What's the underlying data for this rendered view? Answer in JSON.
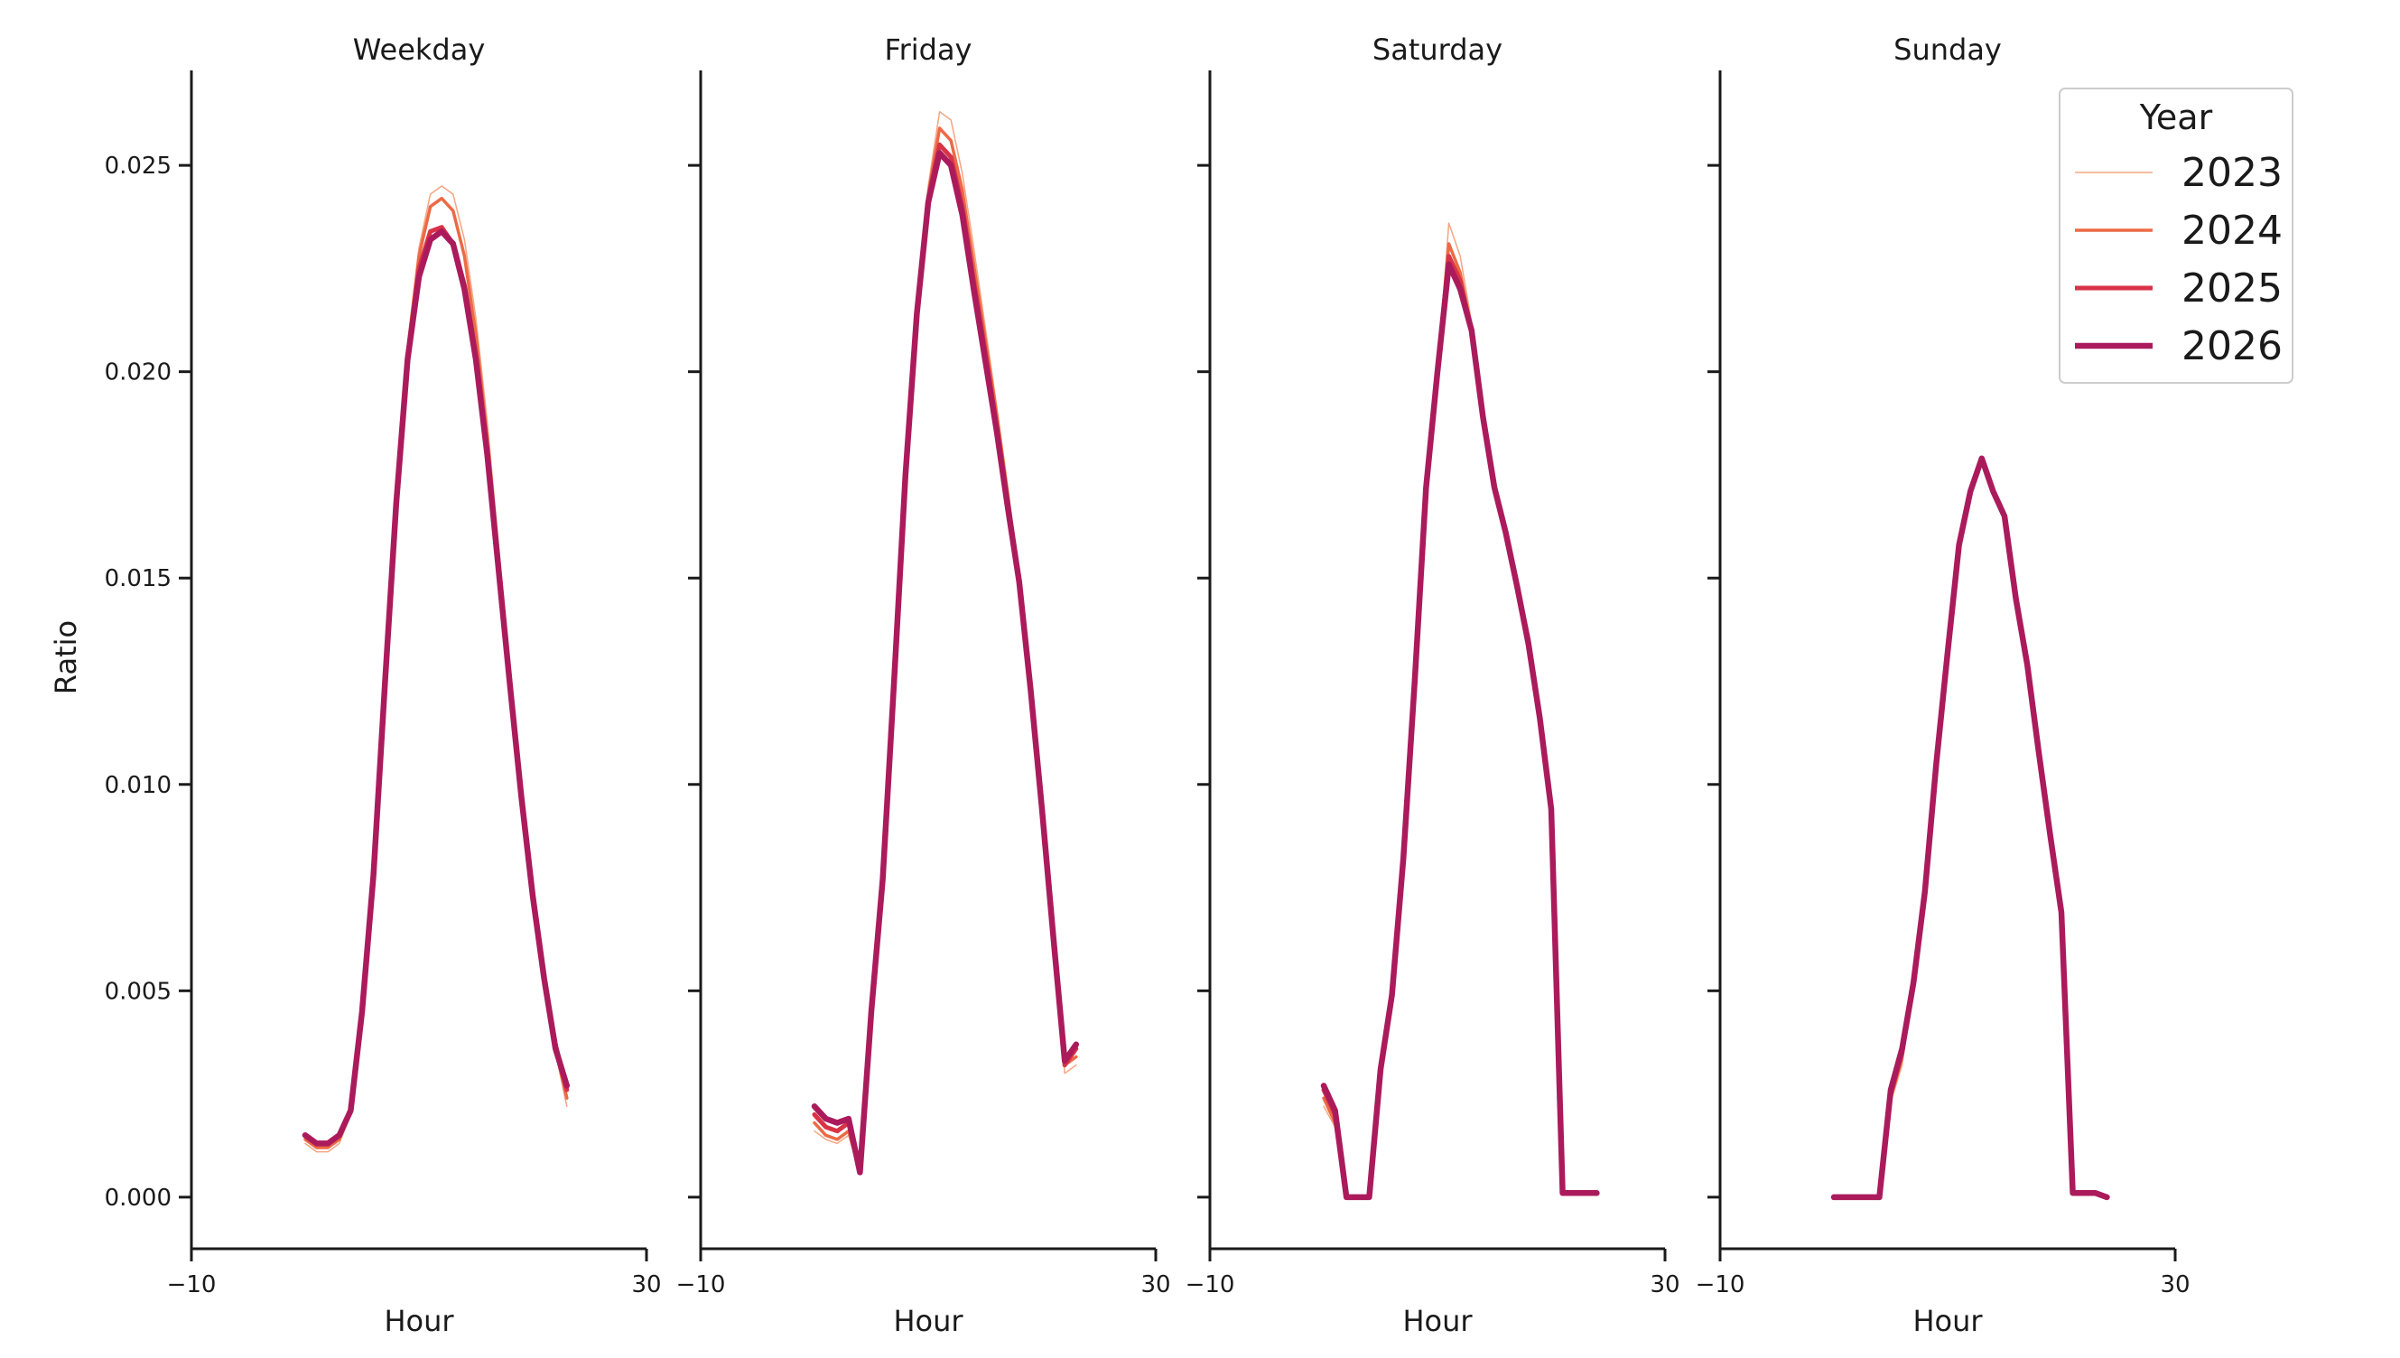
{
  "chart_data": {
    "type": "line",
    "ylabel": "Ratio",
    "xlabel": "Hour",
    "xlim": [
      -10,
      30
    ],
    "ylim": [
      -0.00125,
      0.0273
    ],
    "xticks": [
      -10,
      30
    ],
    "yticks": [
      0.0,
      0.005,
      0.01,
      0.015,
      0.02,
      0.025
    ],
    "ytick_labels": [
      "0.000",
      "0.005",
      "0.010",
      "0.015",
      "0.020",
      "0.025"
    ],
    "xtick_labels": [
      "−10",
      "30"
    ],
    "grid": false,
    "legend": {
      "title": "Year",
      "placement": "top-right",
      "entries": [
        "2023",
        "2024",
        "2025",
        "2026"
      ]
    },
    "series_style": {
      "2023": {
        "color": "#f4a582",
        "width": 1.5
      },
      "2024": {
        "color": "#ec6a45",
        "width": 3.5
      },
      "2025": {
        "color": "#d83347",
        "width": 5
      },
      "2026": {
        "color": "#ab1b5c",
        "width": 6.5
      }
    },
    "panels": [
      {
        "title": "Weekday",
        "series": [
          {
            "name": "2023",
            "x": [
              0,
              1,
              2,
              3,
              4,
              5,
              6,
              7,
              8,
              9,
              10,
              11,
              12,
              13,
              14,
              15,
              16,
              17,
              18,
              19,
              20,
              21,
              22,
              23
            ],
            "y": [
              0.0013,
              0.0011,
              0.0011,
              0.0013,
              0.002,
              0.0044,
              0.0078,
              0.0125,
              0.017,
              0.0207,
              0.023,
              0.0243,
              0.0245,
              0.0243,
              0.0232,
              0.0213,
              0.0188,
              0.0158,
              0.0128,
              0.0098,
              0.0073,
              0.0052,
              0.0035,
              0.0022
            ]
          },
          {
            "name": "2024",
            "x": [
              0,
              1,
              2,
              3,
              4,
              5,
              6,
              7,
              8,
              9,
              10,
              11,
              12,
              13,
              14,
              15,
              16,
              17,
              18,
              19,
              20,
              21,
              22,
              23
            ],
            "y": [
              0.0014,
              0.0012,
              0.0012,
              0.0014,
              0.0021,
              0.0044,
              0.0078,
              0.0124,
              0.0169,
              0.0205,
              0.0228,
              0.024,
              0.0242,
              0.0239,
              0.0228,
              0.0209,
              0.0184,
              0.0155,
              0.0126,
              0.0097,
              0.0073,
              0.0052,
              0.0036,
              0.0024
            ]
          },
          {
            "name": "2025",
            "x": [
              0,
              1,
              2,
              3,
              4,
              5,
              6,
              7,
              8,
              9,
              10,
              11,
              12,
              13,
              14,
              15,
              16,
              17,
              18,
              19,
              20,
              21,
              22,
              23
            ],
            "y": [
              0.0015,
              0.0013,
              0.0013,
              0.0015,
              0.0021,
              0.0045,
              0.0078,
              0.0124,
              0.0168,
              0.0203,
              0.0225,
              0.0234,
              0.0235,
              0.0231,
              0.0221,
              0.0204,
              0.0181,
              0.0153,
              0.0125,
              0.0097,
              0.0073,
              0.0053,
              0.0037,
              0.0026
            ]
          },
          {
            "name": "2026",
            "x": [
              0,
              1,
              2,
              3,
              4,
              5,
              6,
              7,
              8,
              9,
              10,
              11,
              12,
              13,
              14,
              15,
              16,
              17,
              18,
              19,
              20,
              21,
              22,
              23
            ],
            "y": [
              0.0015,
              0.0013,
              0.0013,
              0.0015,
              0.0021,
              0.0045,
              0.0078,
              0.0124,
              0.0168,
              0.0203,
              0.0223,
              0.0232,
              0.0234,
              0.0231,
              0.022,
              0.0203,
              0.018,
              0.0152,
              0.0124,
              0.0097,
              0.0073,
              0.0053,
              0.0036,
              0.0027
            ]
          }
        ]
      },
      {
        "title": "Friday",
        "series": [
          {
            "name": "2023",
            "x": [
              0,
              1,
              2,
              3,
              4,
              5,
              6,
              7,
              8,
              9,
              10,
              11,
              12,
              13,
              14,
              15,
              16,
              17,
              18,
              19,
              20,
              21,
              22,
              23
            ],
            "y": [
              0.0016,
              0.0014,
              0.0013,
              0.0015,
              0.0006,
              0.0045,
              0.0077,
              0.0125,
              0.0175,
              0.0215,
              0.0245,
              0.0263,
              0.0261,
              0.0248,
              0.023,
              0.0211,
              0.0192,
              0.0172,
              0.015,
              0.0123,
              0.0092,
              0.006,
              0.003,
              0.0032
            ]
          },
          {
            "name": "2024",
            "x": [
              0,
              1,
              2,
              3,
              4,
              5,
              6,
              7,
              8,
              9,
              10,
              11,
              12,
              13,
              14,
              15,
              16,
              17,
              18,
              19,
              20,
              21,
              22,
              23
            ],
            "y": [
              0.0018,
              0.0015,
              0.0014,
              0.0016,
              0.0006,
              0.0045,
              0.0077,
              0.0125,
              0.0175,
              0.0214,
              0.0243,
              0.0259,
              0.0256,
              0.0244,
              0.0226,
              0.0208,
              0.019,
              0.017,
              0.015,
              0.0123,
              0.0093,
              0.0062,
              0.0032,
              0.0034
            ]
          },
          {
            "name": "2025",
            "x": [
              0,
              1,
              2,
              3,
              4,
              5,
              6,
              7,
              8,
              9,
              10,
              11,
              12,
              13,
              14,
              15,
              16,
              17,
              18,
              19,
              20,
              21,
              22,
              23
            ],
            "y": [
              0.002,
              0.0017,
              0.0016,
              0.0018,
              0.0006,
              0.0045,
              0.0077,
              0.0125,
              0.0175,
              0.0214,
              0.0242,
              0.0255,
              0.0252,
              0.024,
              0.0222,
              0.0205,
              0.0187,
              0.0168,
              0.0149,
              0.0123,
              0.0093,
              0.0063,
              0.0032,
              0.0036
            ]
          },
          {
            "name": "2026",
            "x": [
              0,
              1,
              2,
              3,
              4,
              5,
              6,
              7,
              8,
              9,
              10,
              11,
              12,
              13,
              14,
              15,
              16,
              17,
              18,
              19,
              20,
              21,
              22,
              23
            ],
            "y": [
              0.0022,
              0.0019,
              0.0018,
              0.0019,
              0.0006,
              0.0045,
              0.0077,
              0.0125,
              0.0175,
              0.0214,
              0.0241,
              0.0253,
              0.025,
              0.0238,
              0.022,
              0.0203,
              0.0186,
              0.0167,
              0.0149,
              0.0123,
              0.0094,
              0.0063,
              0.0033,
              0.0037
            ]
          }
        ]
      },
      {
        "title": "Saturday",
        "series": [
          {
            "name": "2023",
            "x": [
              0,
              1,
              2,
              3,
              4,
              5,
              6,
              7,
              8,
              9,
              10,
              11,
              12,
              13,
              14,
              15,
              16,
              17,
              18,
              19,
              20,
              21,
              22,
              23,
              24
            ],
            "y": [
              0.0022,
              0.0017,
              0.0,
              0.0,
              0.0,
              0.0031,
              0.0049,
              0.0082,
              0.0125,
              0.0172,
              0.02,
              0.0236,
              0.0228,
              0.0212,
              0.019,
              0.0172,
              0.0161,
              0.0149,
              0.0136,
              0.0116,
              0.0094,
              0.0001,
              0.0001,
              0.0001,
              0.0001
            ]
          },
          {
            "name": "2024",
            "x": [
              0,
              1,
              2,
              3,
              4,
              5,
              6,
              7,
              8,
              9,
              10,
              11,
              12,
              13,
              14,
              15,
              16,
              17,
              18,
              19,
              20,
              21,
              22,
              23,
              24
            ],
            "y": [
              0.0024,
              0.0018,
              0.0,
              0.0,
              0.0,
              0.0031,
              0.0049,
              0.0082,
              0.0125,
              0.0172,
              0.02,
              0.0231,
              0.0224,
              0.021,
              0.0189,
              0.0172,
              0.0161,
              0.0148,
              0.0135,
              0.0116,
              0.0094,
              0.0001,
              0.0001,
              0.0001,
              0.0001
            ]
          },
          {
            "name": "2025",
            "x": [
              0,
              1,
              2,
              3,
              4,
              5,
              6,
              7,
              8,
              9,
              10,
              11,
              12,
              13,
              14,
              15,
              16,
              17,
              18,
              19,
              20,
              21,
              22,
              23,
              24
            ],
            "y": [
              0.0026,
              0.002,
              0.0,
              0.0,
              0.0,
              0.0031,
              0.0049,
              0.0082,
              0.0125,
              0.0172,
              0.02,
              0.0228,
              0.0222,
              0.021,
              0.0189,
              0.0172,
              0.0161,
              0.0148,
              0.0135,
              0.0116,
              0.0094,
              0.0001,
              0.0001,
              0.0001,
              0.0001
            ]
          },
          {
            "name": "2026",
            "x": [
              0,
              1,
              2,
              3,
              4,
              5,
              6,
              7,
              8,
              9,
              10,
              11,
              12,
              13,
              14,
              15,
              16,
              17,
              18,
              19,
              20,
              21,
              22,
              23,
              24
            ],
            "y": [
              0.0027,
              0.0021,
              0.0,
              0.0,
              0.0,
              0.0031,
              0.0049,
              0.0082,
              0.0125,
              0.0172,
              0.02,
              0.0226,
              0.022,
              0.021,
              0.0189,
              0.0172,
              0.0161,
              0.0148,
              0.0134,
              0.0116,
              0.0094,
              0.0001,
              0.0001,
              0.0001,
              0.0001
            ]
          }
        ]
      },
      {
        "title": "Sunday",
        "series": [
          {
            "name": "2023",
            "x": [
              0,
              1,
              2,
              3,
              4,
              5,
              6,
              7,
              8,
              9,
              10,
              11,
              12,
              13,
              14,
              15,
              16,
              17,
              18,
              19,
              20,
              21,
              22,
              23,
              24
            ],
            "y": [
              0.0,
              0.0,
              0.0,
              0.0,
              0.0,
              0.0023,
              0.0032,
              0.0052,
              0.0074,
              0.0105,
              0.0132,
              0.0158,
              0.0171,
              0.0179,
              0.0171,
              0.0165,
              0.0145,
              0.0129,
              0.0108,
              0.0088,
              0.0069,
              0.0001,
              0.0001,
              0.0001,
              0.0
            ]
          },
          {
            "name": "2024",
            "x": [
              0,
              1,
              2,
              3,
              4,
              5,
              6,
              7,
              8,
              9,
              10,
              11,
              12,
              13,
              14,
              15,
              16,
              17,
              18,
              19,
              20,
              21,
              22,
              23,
              24
            ],
            "y": [
              0.0,
              0.0,
              0.0,
              0.0,
              0.0,
              0.0024,
              0.0034,
              0.0052,
              0.0074,
              0.0105,
              0.0132,
              0.0158,
              0.0171,
              0.0179,
              0.0171,
              0.0165,
              0.0145,
              0.0129,
              0.0108,
              0.0088,
              0.0069,
              0.0001,
              0.0001,
              0.0001,
              0.0
            ]
          },
          {
            "name": "2025",
            "x": [
              0,
              1,
              2,
              3,
              4,
              5,
              6,
              7,
              8,
              9,
              10,
              11,
              12,
              13,
              14,
              15,
              16,
              17,
              18,
              19,
              20,
              21,
              22,
              23,
              24
            ],
            "y": [
              0.0,
              0.0,
              0.0,
              0.0,
              0.0,
              0.0025,
              0.0035,
              0.0052,
              0.0074,
              0.0105,
              0.0132,
              0.0158,
              0.0171,
              0.0179,
              0.0171,
              0.0165,
              0.0145,
              0.0129,
              0.0108,
              0.0088,
              0.0069,
              0.0001,
              0.0001,
              0.0001,
              0.0
            ]
          },
          {
            "name": "2026",
            "x": [
              0,
              1,
              2,
              3,
              4,
              5,
              6,
              7,
              8,
              9,
              10,
              11,
              12,
              13,
              14,
              15,
              16,
              17,
              18,
              19,
              20,
              21,
              22,
              23,
              24
            ],
            "y": [
              0.0,
              0.0,
              0.0,
              0.0,
              0.0,
              0.0026,
              0.0036,
              0.0052,
              0.0074,
              0.0105,
              0.0132,
              0.0158,
              0.0171,
              0.0179,
              0.0171,
              0.0165,
              0.0145,
              0.0129,
              0.0108,
              0.0088,
              0.0069,
              0.0001,
              0.0001,
              0.0001,
              0.0
            ]
          }
        ]
      }
    ]
  }
}
